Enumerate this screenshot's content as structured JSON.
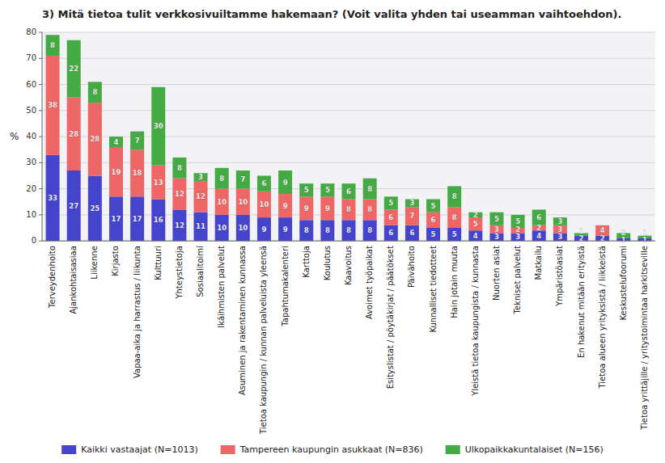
{
  "chart_data": {
    "type": "bar",
    "stacked": true,
    "title": "3) Mitä tietoa tulit verkkosivuiltamme hakemaan? (Voit valita yhden tai useamman vaihtoehdon).",
    "ylabel": "%",
    "ylim": [
      0,
      80
    ],
    "yticks": [
      0,
      10,
      20,
      30,
      40,
      50,
      60,
      70,
      80
    ],
    "grid": true,
    "legend": "bottom",
    "data_labels": true,
    "categories": [
      "Terveydenhoito",
      "Ajankohtaisasiaa",
      "Liikenne",
      "Kirjasto",
      "Vapaa-aika ja harrastus / liikunta",
      "Kulttuuri",
      "Yhteystietoja",
      "Sosiaalitoimí",
      "Ikäihmisten palvelut",
      "Asuminen ja rakentaminen kunnassa",
      "Tietoa kaupungin / kunnan palveluista yleensä",
      "Tapahtumakalenteri",
      "Karttoja",
      "Koulutus",
      "Kaavoitus",
      "Avoimet työpaikat",
      "Esityslistat / pöytäkirjat / päätökset",
      "Päivähoito",
      "Kunnalliset tiedotteet",
      "Hain jotain muuta",
      "Yleistä tietoa kaupungista / kunnasta",
      "Nuorten asiat",
      "Tekniset palvelut",
      "Matkailu",
      "Ympäristöasiat",
      "En hakenut mitään erityistä",
      "Tietoa alueen yrityksistä / liikkeistä",
      "Keskustelufoorumi",
      "Tietoa yrittäjille / yritystoimintaa harkitseville"
    ],
    "series": [
      {
        "name": "Kaikki vastaajat (N=1013)",
        "color": "#4444CC",
        "values": [
          33,
          27,
          25,
          17,
          17,
          16,
          12,
          11,
          10,
          10,
          9,
          9,
          8,
          8,
          8,
          8,
          6,
          6,
          5,
          5,
          4,
          3,
          3,
          4,
          3,
          2,
          2,
          1,
          1
        ]
      },
      {
        "name": "Tampereen kaupungin asukkaat (N=836)",
        "color": "#EE6666",
        "values": [
          38,
          28,
          28,
          19,
          18,
          13,
          12,
          12,
          10,
          10,
          10,
          9,
          9,
          9,
          8,
          8,
          6,
          7,
          6,
          8,
          5,
          3,
          2,
          2,
          3,
          0,
          4,
          0,
          0
        ]
      },
      {
        "name": "Ulkopaikkakuntalaiset (N=156)",
        "color": "#44AA44",
        "values": [
          8,
          22,
          8,
          4,
          7,
          30,
          8,
          3,
          8,
          7,
          6,
          9,
          5,
          5,
          6,
          8,
          5,
          3,
          5,
          8,
          2,
          5,
          5,
          6,
          3,
          1,
          0,
          2,
          1
        ]
      }
    ]
  }
}
